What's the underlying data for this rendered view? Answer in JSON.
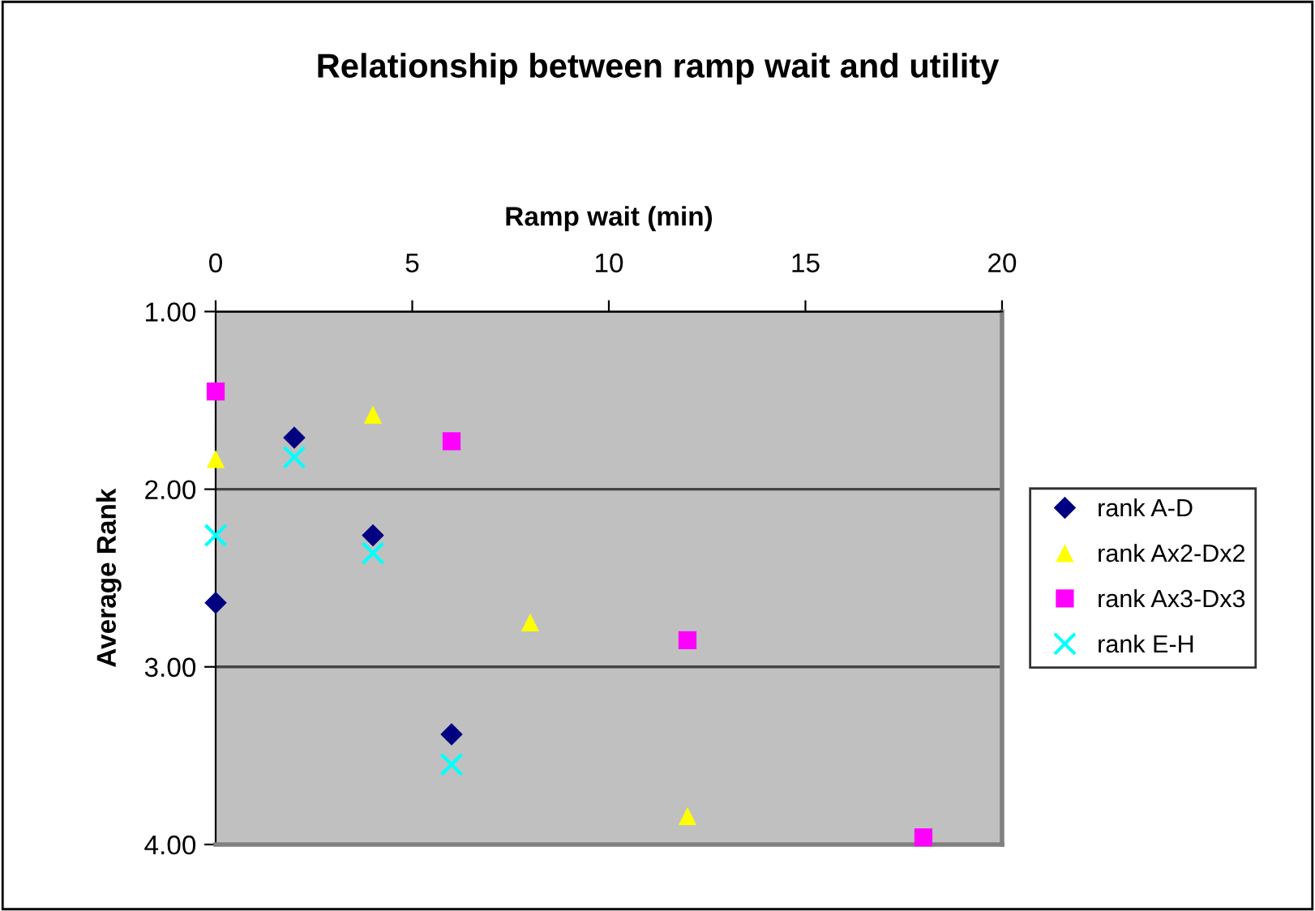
{
  "chart_data": {
    "type": "scatter",
    "title": "Relationship between ramp wait and utility",
    "xlabel": "Ramp wait (min)",
    "ylabel": "Average Rank",
    "xlim": [
      0,
      20
    ],
    "xticks": [
      0,
      5,
      10,
      15,
      20
    ],
    "ylim": [
      4,
      1
    ],
    "yticks": [
      {
        "value": 1,
        "label": "1.00"
      },
      {
        "value": 2,
        "label": "2.00"
      },
      {
        "value": 3,
        "label": "3.00"
      },
      {
        "value": 4,
        "label": "4.00"
      }
    ],
    "grid": "y",
    "legend": "right",
    "series": [
      {
        "name": "rank A-D",
        "color": "#000080",
        "marker": "diamond",
        "x": [
          0,
          2,
          4,
          6
        ],
        "values": [
          2.64,
          1.71,
          2.26,
          3.38
        ]
      },
      {
        "name": "rank Ax2-Dx2",
        "color": "#ffff00",
        "marker": "triangle",
        "x": [
          0,
          4,
          8,
          12
        ],
        "values": [
          1.83,
          1.58,
          2.75,
          3.84
        ]
      },
      {
        "name": "rank Ax3-Dx3",
        "color": "#ff00ff",
        "marker": "square",
        "x": [
          0,
          6,
          12,
          18
        ],
        "values": [
          1.45,
          1.73,
          2.85,
          3.96
        ]
      },
      {
        "name": "rank E-H",
        "color": "#00ffff",
        "marker": "cross",
        "x": [
          0,
          2,
          4,
          6
        ],
        "values": [
          2.26,
          1.82,
          2.36,
          3.55
        ]
      }
    ]
  }
}
